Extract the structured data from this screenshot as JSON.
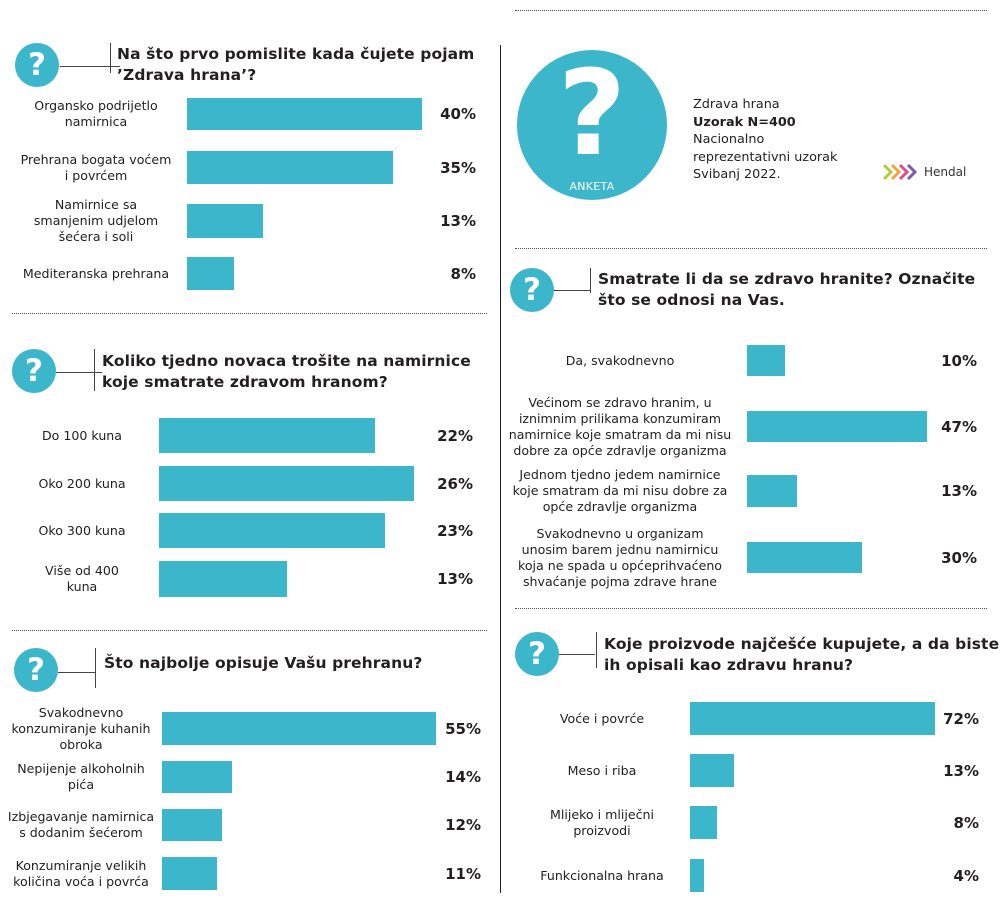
{
  "survey_info": {
    "badge": "ANKETA",
    "line1": "Zdrava hrana",
    "line2": "Uzorak N=400",
    "line3a": "Nacionalno",
    "line3b": "reprezentativni uzorak",
    "line4": "Svibanj 2022.",
    "logo_text": "Hendal"
  },
  "colors": {
    "bar": "#3bb6cb",
    "text": "#231f20"
  },
  "chart_data": [
    {
      "type": "bar",
      "title_lines": [
        "Na što prvo pomislite kada čujete pojam",
        "’Zdrava hrana’?"
      ],
      "categories": [
        [
          "Organsko podrijetlo",
          "namirnica"
        ],
        [
          "Prehrana bogata voćem",
          "i povrćem"
        ],
        [
          "Namirnice sa",
          "smanjenim udjelom",
          "šećera i soli"
        ],
        [
          "Mediteranska prehrana"
        ]
      ],
      "values": [
        40,
        35,
        13,
        8
      ],
      "value_labels": [
        "40%",
        "35%",
        "13%",
        "8%"
      ]
    },
    {
      "type": "bar",
      "title_lines": [
        "Koliko tjedno novaca trošite na namirnice",
        "koje smatrate zdravom hranom?"
      ],
      "categories": [
        [
          "Do 100 kuna"
        ],
        [
          "Oko 200 kuna"
        ],
        [
          "Oko 300 kuna"
        ],
        [
          "Više od 400",
          "kuna"
        ]
      ],
      "values": [
        22,
        26,
        23,
        13
      ],
      "value_labels": [
        "22%",
        "26%",
        "23%",
        "13%"
      ]
    },
    {
      "type": "bar",
      "title_lines": [
        "Što najbolje opisuje Vašu prehranu?"
      ],
      "categories": [
        [
          "Svakodnevno",
          "konzumiranje kuhanih",
          "obroka"
        ],
        [
          "Nepijenje alkoholnih",
          "pića"
        ],
        [
          "Izbjegavanje namirnica",
          "s dodanim šećerom"
        ],
        [
          "Konzumiranje velikih",
          "količina voća i povrća"
        ]
      ],
      "values": [
        55,
        14,
        12,
        11
      ],
      "value_labels": [
        "55%",
        "14%",
        "12%",
        "11%"
      ]
    },
    {
      "type": "bar",
      "title_lines": [
        "Smatrate li da se zdravo hranite? Označite",
        "što se odnosi na Vas."
      ],
      "categories": [
        [
          "Da, svakodnevno"
        ],
        [
          "Većinom se zdravo hranim, u",
          "iznimnim prilikama konzumiram",
          "namirnice koje smatram da mi nisu",
          "dobre za opće zdravlje organizma"
        ],
        [
          "Jednom tjedno jedem namirnice",
          "koje smatram da mi nisu dobre za",
          "opće zdravlje organizma"
        ],
        [
          "Svakodnevno u organizam",
          "unosim barem jednu namirnicu",
          "koja ne spada u općeprihvaćeno",
          "shvaćanje pojma zdrave hrane"
        ]
      ],
      "values": [
        10,
        47,
        13,
        30
      ],
      "value_labels": [
        "10%",
        "47%",
        "13%",
        "30%"
      ]
    },
    {
      "type": "bar",
      "title_lines": [
        "Koje proizvode najčešće kupujete, a da biste",
        "ih opisali kao zdravu hranu?"
      ],
      "categories": [
        [
          "Voće i povrće"
        ],
        [
          "Meso i riba"
        ],
        [
          "Mlijeko i mliječni",
          "proizvodi"
        ],
        [
          "Funkcionalna hrana"
        ]
      ],
      "values": [
        72,
        13,
        8,
        4
      ],
      "value_labels": [
        "72%",
        "13%",
        "8%",
        "4%"
      ]
    }
  ]
}
